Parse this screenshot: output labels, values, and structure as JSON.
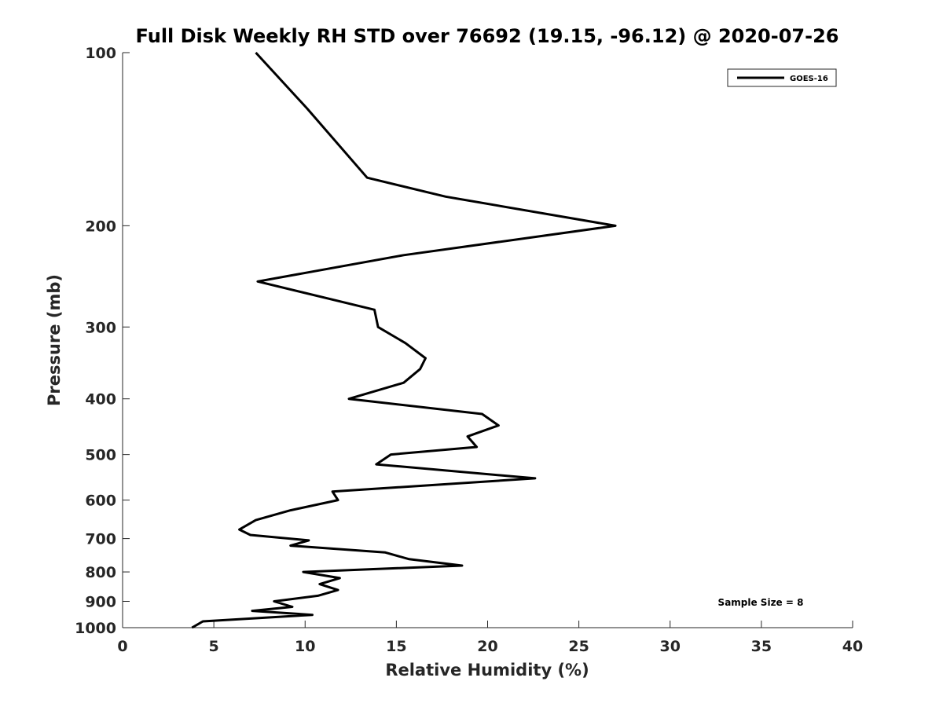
{
  "chart_data": {
    "type": "line",
    "title": "Full Disk Weekly RH STD over 76692 (19.15, -96.12) @ 2020-07-26",
    "xlabel": "Relative Humidity (%)",
    "ylabel": "Pressure (mb)",
    "xlim": [
      0,
      40
    ],
    "ylim": [
      1000,
      100
    ],
    "yscale": "log",
    "y_inverted": true,
    "grid": false,
    "legend_position": "top-right",
    "x_ticks": [
      0,
      5,
      10,
      15,
      20,
      25,
      30,
      35,
      40
    ],
    "y_ticks": [
      100,
      200,
      300,
      400,
      500,
      600,
      700,
      800,
      900,
      1000
    ],
    "series": [
      {
        "name": "GOES-16",
        "color": "#000000",
        "points": [
          [
            7.3,
            100
          ],
          [
            10.1,
            125
          ],
          [
            13.4,
            165
          ],
          [
            17.7,
            178
          ],
          [
            27.0,
            200
          ],
          [
            15.4,
            225
          ],
          [
            7.4,
            250
          ],
          [
            13.8,
            280
          ],
          [
            14.0,
            300
          ],
          [
            15.5,
            320
          ],
          [
            16.6,
            340
          ],
          [
            16.3,
            355
          ],
          [
            15.4,
            375
          ],
          [
            12.4,
            400
          ],
          [
            19.7,
            425
          ],
          [
            20.6,
            445
          ],
          [
            18.9,
            465
          ],
          [
            19.4,
            485
          ],
          [
            14.7,
            500
          ],
          [
            13.9,
            520
          ],
          [
            22.6,
            550
          ],
          [
            11.5,
            580
          ],
          [
            11.8,
            600
          ],
          [
            9.2,
            625
          ],
          [
            7.3,
            650
          ],
          [
            6.4,
            675
          ],
          [
            7.0,
            690
          ],
          [
            10.2,
            705
          ],
          [
            9.2,
            720
          ],
          [
            14.4,
            740
          ],
          [
            15.7,
            760
          ],
          [
            18.6,
            780
          ],
          [
            9.9,
            800
          ],
          [
            11.9,
            820
          ],
          [
            10.8,
            840
          ],
          [
            11.8,
            860
          ],
          [
            10.7,
            880
          ],
          [
            8.3,
            900
          ],
          [
            9.3,
            920
          ],
          [
            7.1,
            935
          ],
          [
            10.4,
            950
          ],
          [
            4.4,
            975
          ],
          [
            3.8,
            1000
          ]
        ]
      }
    ],
    "annotations": [
      {
        "text": "Sample Size = 8",
        "position": "bottom-right"
      }
    ]
  }
}
